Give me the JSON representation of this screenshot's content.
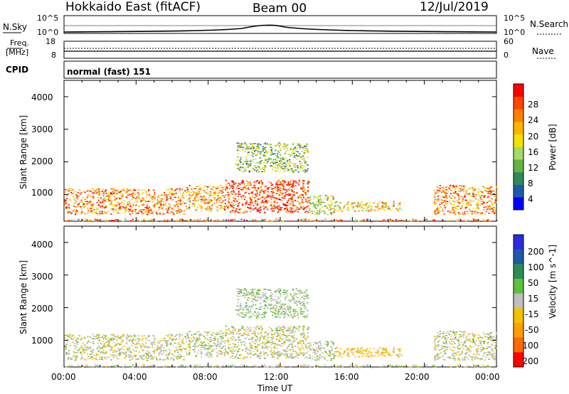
{
  "header": {
    "station": "Hokkaido East (fitACF)",
    "beam": "Beam 00",
    "date": "12/Jul/2019"
  },
  "noise_panel": {
    "left_label": "N.Sky",
    "left_ticks": [
      "10^5",
      "10^0"
    ],
    "right_label": "N.Search",
    "right_ticks": [
      "10^5",
      "10^0"
    ]
  },
  "freq_panel": {
    "left_label_1": "Freq.",
    "left_label_2": "[MHz]",
    "left_ticks": [
      "18",
      "8"
    ],
    "right_label": "Nave",
    "right_ticks": [
      "60",
      "0"
    ]
  },
  "cpid_panel": {
    "left_label": "CPID",
    "mode_text": "normal (fast) 151"
  },
  "x_axis": {
    "label": "Time UT",
    "ticks": [
      "00:00",
      "04:00",
      "08:00",
      "12:00",
      "16:00",
      "20:00",
      "00:00"
    ]
  },
  "power_panel": {
    "ylabel": "Slant Range [km]",
    "yticks": [
      "1000",
      "2000",
      "3000",
      "4000"
    ],
    "colorbar_label": "Power [dB]",
    "colorbar_ticks": [
      "28",
      "24",
      "20",
      "16",
      "12",
      "8",
      "4"
    ],
    "colors": [
      "#0000ff",
      "#1e5aa8",
      "#2e8b57",
      "#63b346",
      "#a6d96a",
      "#f2e200",
      "#ffb300",
      "#ff7f00",
      "#ff4500",
      "#ff0000"
    ]
  },
  "velocity_panel": {
    "ylabel": "Slant Range [km]",
    "yticks": [
      "1000",
      "2000",
      "3000",
      "4000"
    ],
    "colorbar_label": "Velocity [m s^-1]",
    "colorbar_ticks": [
      "200",
      "100",
      "50",
      "15",
      "-15",
      "-50",
      "-100",
      "-200"
    ],
    "colors": [
      "#2a2ae0",
      "#1e5aa8",
      "#2e8b57",
      "#5fbf3f",
      "#bfbfbf",
      "#f2c200",
      "#ff9f00",
      "#ff6a00",
      "#ff0000"
    ]
  },
  "chart_data": {
    "type": "heatmap",
    "title": "Hokkaido East (fitACF) Beam 00 12/Jul/2019",
    "xlabel": "Time UT",
    "ylabel": "Slant Range [km]",
    "x_range_hours": [
      0,
      24
    ],
    "ylim": [
      180,
      4500
    ],
    "echo_regions": [
      {
        "t_start": 0.0,
        "t_end": 6.7,
        "range_min": 400,
        "range_max": 1200,
        "power_db": 22,
        "velocity": -5
      },
      {
        "t_start": 6.7,
        "t_end": 8.8,
        "range_min": 500,
        "range_max": 1300,
        "power_db": 20,
        "velocity": 0
      },
      {
        "t_start": 8.8,
        "t_end": 13.6,
        "range_min": 450,
        "range_max": 1450,
        "power_db": 26,
        "velocity": -5
      },
      {
        "t_start": 13.6,
        "t_end": 15.0,
        "range_min": 400,
        "range_max": 1000,
        "power_db": 14,
        "velocity": 5
      },
      {
        "t_start": 15.0,
        "t_end": 18.7,
        "range_min": 500,
        "range_max": 800,
        "power_db": 18,
        "velocity": -40
      },
      {
        "t_start": 20.5,
        "t_end": 24.0,
        "range_min": 400,
        "range_max": 1300,
        "power_db": 22,
        "velocity": 0
      },
      {
        "t_start": 0.0,
        "t_end": 24.0,
        "range_min": 180,
        "range_max": 260,
        "power_db": 24,
        "velocity": 0
      },
      {
        "t_start": 9.5,
        "t_end": 13.5,
        "range_min": 1700,
        "range_max": 2600,
        "power_db": 12,
        "velocity": 10
      }
    ]
  }
}
